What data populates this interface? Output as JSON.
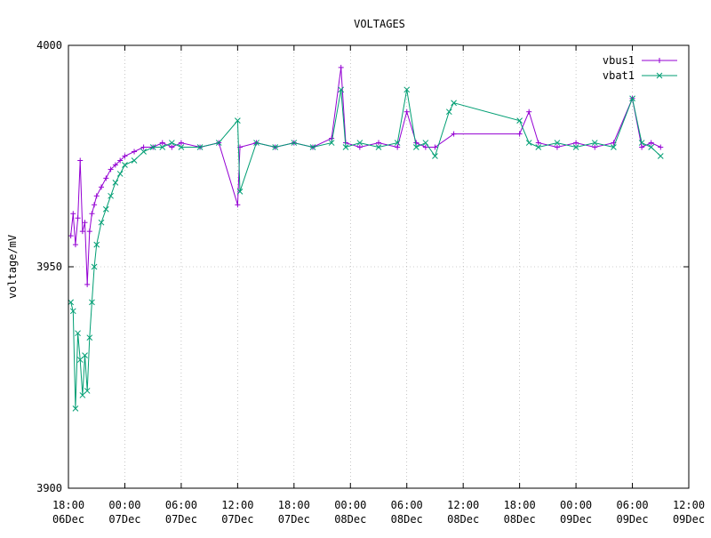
{
  "chart_data": {
    "type": "line",
    "title": "VOLTAGES",
    "xlabel": "",
    "ylabel": "voltage/mV",
    "ylim": [
      3900,
      4000
    ],
    "yticks": [
      3900,
      3950,
      4000
    ],
    "xlim": [
      "06Dec 18:00",
      "09Dec 12:00"
    ],
    "xticks": [
      {
        "time": "18:00",
        "date": "06Dec"
      },
      {
        "time": "00:00",
        "date": "07Dec"
      },
      {
        "time": "06:00",
        "date": "07Dec"
      },
      {
        "time": "12:00",
        "date": "07Dec"
      },
      {
        "time": "18:00",
        "date": "07Dec"
      },
      {
        "time": "00:00",
        "date": "08Dec"
      },
      {
        "time": "06:00",
        "date": "08Dec"
      },
      {
        "time": "12:00",
        "date": "08Dec"
      },
      {
        "time": "18:00",
        "date": "08Dec"
      },
      {
        "time": "00:00",
        "date": "09Dec"
      },
      {
        "time": "06:00",
        "date": "09Dec"
      },
      {
        "time": "12:00",
        "date": "09Dec"
      }
    ],
    "grid": true,
    "legend_position": "top-right",
    "series": [
      {
        "name": "vbus1",
        "color": "#9400d3",
        "marker": "plus",
        "points": [
          [
            "06Dec 18:15",
            3957
          ],
          [
            "06Dec 18:30",
            3962
          ],
          [
            "06Dec 18:45",
            3955
          ],
          [
            "06Dec 19:00",
            3961
          ],
          [
            "06Dec 19:15",
            3974
          ],
          [
            "06Dec 19:30",
            3958
          ],
          [
            "06Dec 19:45",
            3960
          ],
          [
            "06Dec 20:00",
            3946
          ],
          [
            "06Dec 20:15",
            3958
          ],
          [
            "06Dec 20:30",
            3962
          ],
          [
            "06Dec 20:45",
            3964
          ],
          [
            "06Dec 21:00",
            3966
          ],
          [
            "06Dec 21:30",
            3968
          ],
          [
            "06Dec 22:00",
            3970
          ],
          [
            "06Dec 22:30",
            3972
          ],
          [
            "06Dec 23:00",
            3973
          ],
          [
            "06Dec 23:30",
            3974
          ],
          [
            "07Dec 00:00",
            3975
          ],
          [
            "07Dec 01:00",
            3976
          ],
          [
            "07Dec 02:00",
            3977
          ],
          [
            "07Dec 03:00",
            3977
          ],
          [
            "07Dec 04:00",
            3978
          ],
          [
            "07Dec 05:00",
            3977
          ],
          [
            "07Dec 06:00",
            3978
          ],
          [
            "07Dec 08:00",
            3977
          ],
          [
            "07Dec 10:00",
            3978
          ],
          [
            "07Dec 12:00",
            3964
          ],
          [
            "07Dec 12:15",
            3977
          ],
          [
            "07Dec 14:00",
            3978
          ],
          [
            "07Dec 16:00",
            3977
          ],
          [
            "07Dec 18:00",
            3978
          ],
          [
            "07Dec 20:00",
            3977
          ],
          [
            "07Dec 22:00",
            3979
          ],
          [
            "07Dec 23:00",
            3995
          ],
          [
            "07Dec 23:30",
            3978
          ],
          [
            "08Dec 01:00",
            3977
          ],
          [
            "08Dec 03:00",
            3978
          ],
          [
            "08Dec 05:00",
            3977
          ],
          [
            "08Dec 06:00",
            3985
          ],
          [
            "08Dec 07:00",
            3978
          ],
          [
            "08Dec 08:00",
            3977
          ],
          [
            "08Dec 09:00",
            3977
          ],
          [
            "08Dec 11:00",
            3980
          ],
          [
            "08Dec 18:00",
            3980
          ],
          [
            "08Dec 19:00",
            3985
          ],
          [
            "08Dec 20:00",
            3978
          ],
          [
            "08Dec 22:00",
            3977
          ],
          [
            "09Dec 00:00",
            3978
          ],
          [
            "09Dec 02:00",
            3977
          ],
          [
            "09Dec 04:00",
            3978
          ],
          [
            "09Dec 06:00",
            3988
          ],
          [
            "09Dec 07:00",
            3977
          ],
          [
            "09Dec 08:00",
            3978
          ],
          [
            "09Dec 09:00",
            3977
          ]
        ]
      },
      {
        "name": "vbat1",
        "color": "#009e73",
        "marker": "cross",
        "points": [
          [
            "06Dec 18:15",
            3942
          ],
          [
            "06Dec 18:30",
            3940
          ],
          [
            "06Dec 18:45",
            3918
          ],
          [
            "06Dec 19:00",
            3935
          ],
          [
            "06Dec 19:15",
            3929
          ],
          [
            "06Dec 19:30",
            3921
          ],
          [
            "06Dec 19:45",
            3930
          ],
          [
            "06Dec 20:00",
            3922
          ],
          [
            "06Dec 20:15",
            3934
          ],
          [
            "06Dec 20:30",
            3942
          ],
          [
            "06Dec 20:45",
            3950
          ],
          [
            "06Dec 21:00",
            3955
          ],
          [
            "06Dec 21:30",
            3960
          ],
          [
            "06Dec 22:00",
            3963
          ],
          [
            "06Dec 22:30",
            3966
          ],
          [
            "06Dec 23:00",
            3969
          ],
          [
            "06Dec 23:30",
            3971
          ],
          [
            "07Dec 00:00",
            3973
          ],
          [
            "07Dec 01:00",
            3974
          ],
          [
            "07Dec 02:00",
            3976
          ],
          [
            "07Dec 03:00",
            3977
          ],
          [
            "07Dec 04:00",
            3977
          ],
          [
            "07Dec 05:00",
            3978
          ],
          [
            "07Dec 06:00",
            3977
          ],
          [
            "07Dec 08:00",
            3977
          ],
          [
            "07Dec 10:00",
            3978
          ],
          [
            "07Dec 12:00",
            3983
          ],
          [
            "07Dec 12:15",
            3967
          ],
          [
            "07Dec 14:00",
            3978
          ],
          [
            "07Dec 16:00",
            3977
          ],
          [
            "07Dec 18:00",
            3978
          ],
          [
            "07Dec 20:00",
            3977
          ],
          [
            "07Dec 22:00",
            3978
          ],
          [
            "07Dec 23:00",
            3990
          ],
          [
            "07Dec 23:30",
            3977
          ],
          [
            "08Dec 01:00",
            3978
          ],
          [
            "08Dec 03:00",
            3977
          ],
          [
            "08Dec 05:00",
            3978
          ],
          [
            "08Dec 06:00",
            3990
          ],
          [
            "08Dec 07:00",
            3977
          ],
          [
            "08Dec 08:00",
            3978
          ],
          [
            "08Dec 09:00",
            3975
          ],
          [
            "08Dec 10:30",
            3985
          ],
          [
            "08Dec 11:00",
            3987
          ],
          [
            "08Dec 18:00",
            3983
          ],
          [
            "08Dec 19:00",
            3978
          ],
          [
            "08Dec 20:00",
            3977
          ],
          [
            "08Dec 22:00",
            3978
          ],
          [
            "09Dec 00:00",
            3977
          ],
          [
            "09Dec 02:00",
            3978
          ],
          [
            "09Dec 04:00",
            3977
          ],
          [
            "09Dec 06:00",
            3988
          ],
          [
            "09Dec 07:00",
            3978
          ],
          [
            "09Dec 08:00",
            3977
          ],
          [
            "09Dec 09:00",
            3975
          ]
        ]
      }
    ]
  }
}
